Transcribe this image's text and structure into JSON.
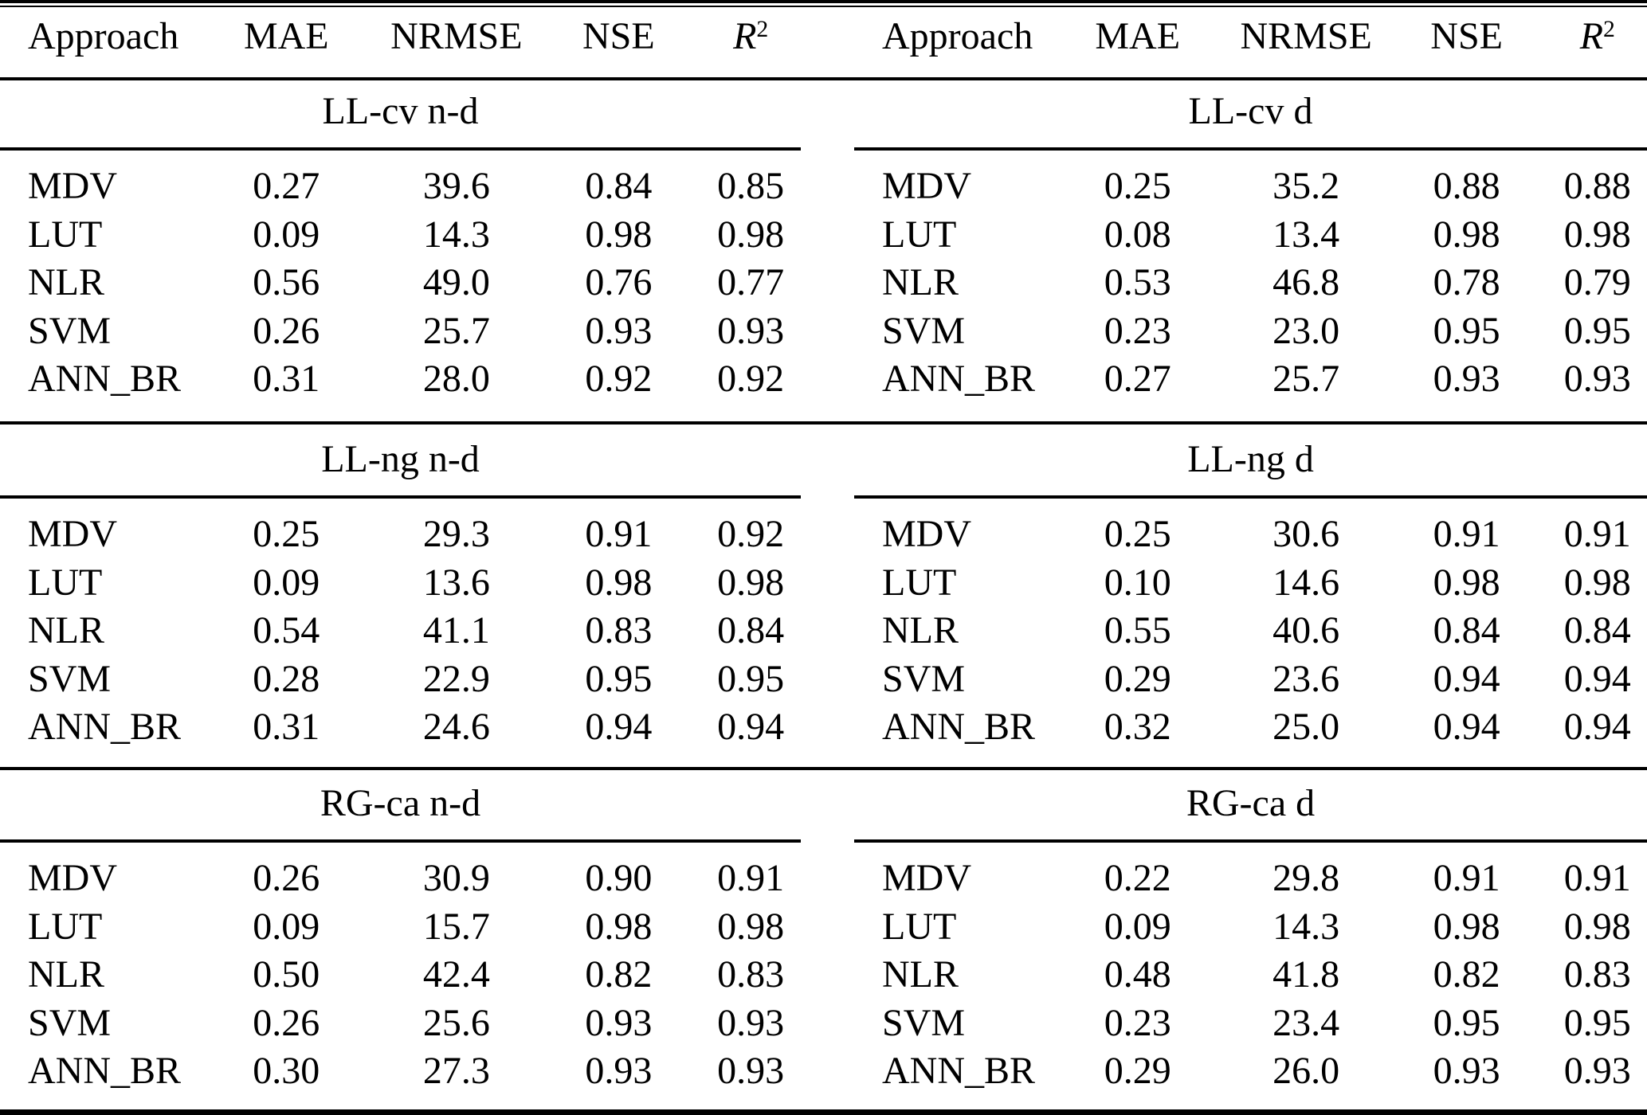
{
  "colors": {
    "background": "#ffffff",
    "text": "#000000",
    "rule": "#000000"
  },
  "header": {
    "columns": [
      "Approach",
      "MAE",
      "NRMSE",
      "NSE"
    ],
    "r2_base": "R",
    "r2_exponent": "2"
  },
  "row_keys": [
    "approach",
    "mae",
    "nrmse",
    "nse",
    "r2"
  ],
  "panels": [
    {
      "side": "left",
      "sections": [
        {
          "title": "LL-cv n-d",
          "rows": [
            {
              "approach": "MDV",
              "mae": "0.27",
              "nrmse": "39.6",
              "nse": "0.84",
              "r2": "0.85"
            },
            {
              "approach": "LUT",
              "mae": "0.09",
              "nrmse": "14.3",
              "nse": "0.98",
              "r2": "0.98"
            },
            {
              "approach": "NLR",
              "mae": "0.56",
              "nrmse": "49.0",
              "nse": "0.76",
              "r2": "0.77"
            },
            {
              "approach": "SVM",
              "mae": "0.26",
              "nrmse": "25.7",
              "nse": "0.93",
              "r2": "0.93"
            },
            {
              "approach": "ANN_BR",
              "mae": "0.31",
              "nrmse": "28.0",
              "nse": "0.92",
              "r2": "0.92"
            }
          ]
        },
        {
          "title": "LL-ng n-d",
          "rows": [
            {
              "approach": "MDV",
              "mae": "0.25",
              "nrmse": "29.3",
              "nse": "0.91",
              "r2": "0.92"
            },
            {
              "approach": "LUT",
              "mae": "0.09",
              "nrmse": "13.6",
              "nse": "0.98",
              "r2": "0.98"
            },
            {
              "approach": "NLR",
              "mae": "0.54",
              "nrmse": "41.1",
              "nse": "0.83",
              "r2": "0.84"
            },
            {
              "approach": "SVM",
              "mae": "0.28",
              "nrmse": "22.9",
              "nse": "0.95",
              "r2": "0.95"
            },
            {
              "approach": "ANN_BR",
              "mae": "0.31",
              "nrmse": "24.6",
              "nse": "0.94",
              "r2": "0.94"
            }
          ]
        },
        {
          "title": "RG-ca n-d",
          "rows": [
            {
              "approach": "MDV",
              "mae": "0.26",
              "nrmse": "30.9",
              "nse": "0.90",
              "r2": "0.91"
            },
            {
              "approach": "LUT",
              "mae": "0.09",
              "nrmse": "15.7",
              "nse": "0.98",
              "r2": "0.98"
            },
            {
              "approach": "NLR",
              "mae": "0.50",
              "nrmse": "42.4",
              "nse": "0.82",
              "r2": "0.83"
            },
            {
              "approach": "SVM",
              "mae": "0.26",
              "nrmse": "25.6",
              "nse": "0.93",
              "r2": "0.93"
            },
            {
              "approach": "ANN_BR",
              "mae": "0.30",
              "nrmse": "27.3",
              "nse": "0.93",
              "r2": "0.93"
            }
          ]
        }
      ]
    },
    {
      "side": "right",
      "sections": [
        {
          "title": "LL-cv d",
          "rows": [
            {
              "approach": "MDV",
              "mae": "0.25",
              "nrmse": "35.2",
              "nse": "0.88",
              "r2": "0.88"
            },
            {
              "approach": "LUT",
              "mae": "0.08",
              "nrmse": "13.4",
              "nse": "0.98",
              "r2": "0.98"
            },
            {
              "approach": "NLR",
              "mae": "0.53",
              "nrmse": "46.8",
              "nse": "0.78",
              "r2": "0.79"
            },
            {
              "approach": "SVM",
              "mae": "0.23",
              "nrmse": "23.0",
              "nse": "0.95",
              "r2": "0.95"
            },
            {
              "approach": "ANN_BR",
              "mae": "0.27",
              "nrmse": "25.7",
              "nse": "0.93",
              "r2": "0.93"
            }
          ]
        },
        {
          "title": "LL-ng d",
          "rows": [
            {
              "approach": "MDV",
              "mae": "0.25",
              "nrmse": "30.6",
              "nse": "0.91",
              "r2": "0.91"
            },
            {
              "approach": "LUT",
              "mae": "0.10",
              "nrmse": "14.6",
              "nse": "0.98",
              "r2": "0.98"
            },
            {
              "approach": "NLR",
              "mae": "0.55",
              "nrmse": "40.6",
              "nse": "0.84",
              "r2": "0.84"
            },
            {
              "approach": "SVM",
              "mae": "0.29",
              "nrmse": "23.6",
              "nse": "0.94",
              "r2": "0.94"
            },
            {
              "approach": "ANN_BR",
              "mae": "0.32",
              "nrmse": "25.0",
              "nse": "0.94",
              "r2": "0.94"
            }
          ]
        },
        {
          "title": "RG-ca d",
          "rows": [
            {
              "approach": "MDV",
              "mae": "0.22",
              "nrmse": "29.8",
              "nse": "0.91",
              "r2": "0.91"
            },
            {
              "approach": "LUT",
              "mae": "0.09",
              "nrmse": "14.3",
              "nse": "0.98",
              "r2": "0.98"
            },
            {
              "approach": "NLR",
              "mae": "0.48",
              "nrmse": "41.8",
              "nse": "0.82",
              "r2": "0.83"
            },
            {
              "approach": "SVM",
              "mae": "0.23",
              "nrmse": "23.4",
              "nse": "0.95",
              "r2": "0.95"
            },
            {
              "approach": "ANN_BR",
              "mae": "0.29",
              "nrmse": "26.0",
              "nse": "0.93",
              "r2": "0.93"
            }
          ]
        }
      ]
    }
  ]
}
